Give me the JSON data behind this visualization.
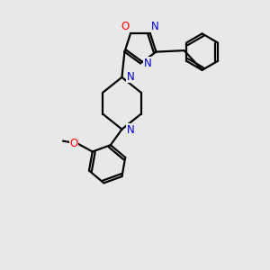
{
  "bg_color": "#e8e8e8",
  "bond_color": "#000000",
  "N_color": "#0000cd",
  "O_color": "#ff0000",
  "line_width": 1.6,
  "font_size": 8.5,
  "fig_size": [
    3.0,
    3.0
  ],
  "dpi": 100,
  "xlim": [
    0,
    10
  ],
  "ylim": [
    0,
    10
  ]
}
